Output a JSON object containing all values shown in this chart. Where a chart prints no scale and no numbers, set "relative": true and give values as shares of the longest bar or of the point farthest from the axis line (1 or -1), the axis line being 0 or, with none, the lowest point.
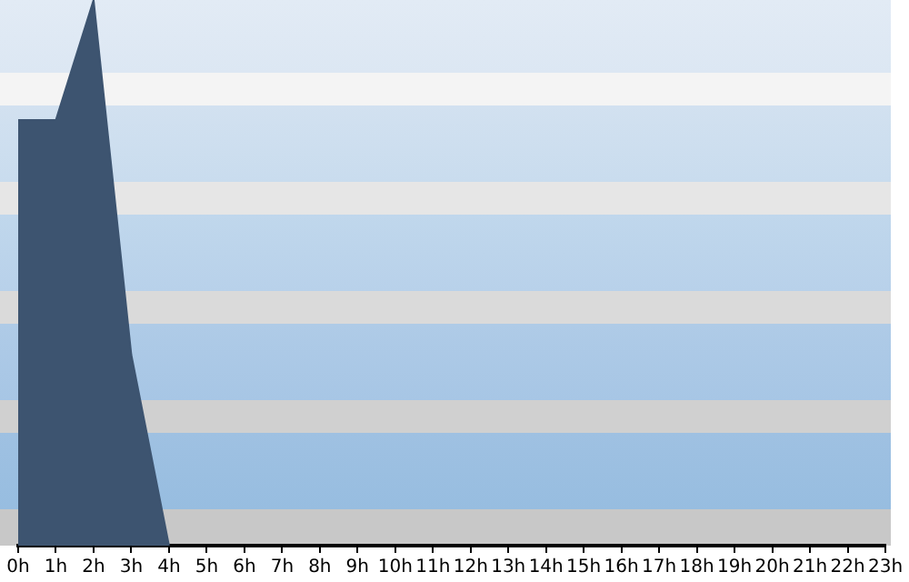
{
  "chart_data": {
    "type": "area",
    "relative": true,
    "color": "#3d5470",
    "categories": [
      "0h",
      "1h",
      "2h",
      "3h",
      "4h",
      "5h",
      "6h",
      "7h",
      "8h",
      "9h",
      "10h",
      "11h",
      "12h",
      "13h",
      "14h",
      "15h",
      "16h",
      "17h",
      "18h",
      "19h",
      "20h",
      "21h",
      "22h",
      "23h"
    ],
    "values": [
      0.78,
      0.78,
      1,
      0.35,
      0,
      null,
      null,
      null,
      null,
      null,
      null,
      null,
      null,
      null,
      null,
      null,
      null,
      null,
      null,
      null,
      null,
      null,
      null,
      null
    ]
  }
}
